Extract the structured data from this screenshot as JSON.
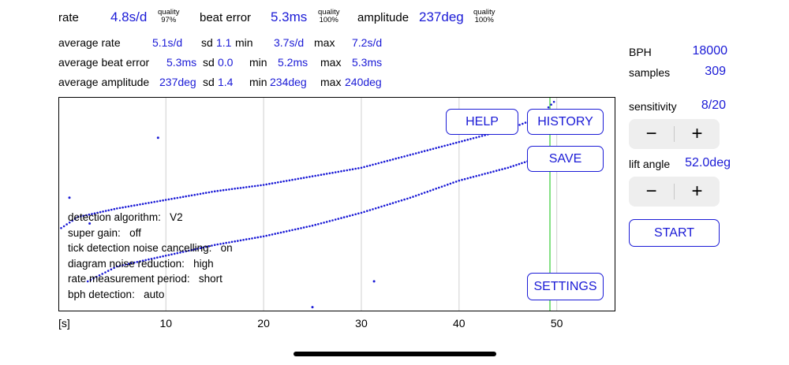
{
  "stats": {
    "rate_label": "rate",
    "rate_value": "4.8s/d",
    "rate_quality_label": "quality",
    "rate_quality_value": "97%",
    "beat_error_label": "beat error",
    "beat_error_value": "5.3ms",
    "beat_quality_label": "quality",
    "beat_quality_value": "100%",
    "amplitude_label": "amplitude",
    "amplitude_value": "237deg",
    "amplitude_quality_label": "quality",
    "amplitude_quality_value": "100%"
  },
  "averages": {
    "rows": [
      {
        "label": "average rate",
        "value": "5.1s/d",
        "sd_label": "sd",
        "sd": "1.1",
        "min_label": "min",
        "min": "3.7s/d",
        "max_label": "max",
        "max": "7.2s/d"
      },
      {
        "label": "average beat error",
        "value": "5.3ms",
        "sd_label": "sd",
        "sd": "0.0",
        "min_label": "min",
        "min": "5.2ms",
        "max_label": "max",
        "max": "5.3ms"
      },
      {
        "label": "average amplitude",
        "value": "237deg",
        "sd_label": "sd",
        "sd": "1.4",
        "min_label": "min",
        "min": "234deg",
        "max_label": "max",
        "max": "240deg"
      }
    ]
  },
  "right_panel": {
    "bph_label": "BPH",
    "bph_value": "18000",
    "samples_label": "samples",
    "samples_value": "309",
    "sensitivity_label": "sensitivity",
    "sensitivity_value": "8/20",
    "lift_angle_label": "lift angle",
    "lift_angle_value": "52.0deg",
    "minus": "−",
    "plus": "+",
    "start_label": "START"
  },
  "buttons": {
    "help": "HELP",
    "history": "HISTORY",
    "save": "SAVE",
    "settings": "SETTINGS"
  },
  "info_lines": [
    {
      "key": "detection algorithm:",
      "value": "V2"
    },
    {
      "key": "super gain:",
      "value": "off"
    },
    {
      "key": "tick detection noise cancelling:",
      "value": "on"
    },
    {
      "key": "diagram noise reduction:",
      "value": "high"
    },
    {
      "key": "rate measurement period:",
      "value": "short"
    },
    {
      "key": "bph detection:",
      "value": "auto"
    }
  ],
  "colors": {
    "accent": "#1a1ad6",
    "green_marker": "#33cc33",
    "grid": "#d0d0d0"
  },
  "chart_data": {
    "type": "scatter",
    "xlabel": "[s]",
    "x_ticks": [
      "10",
      "20",
      "30",
      "40",
      "50"
    ],
    "xlim": [
      -1,
      56
    ],
    "current_time_marker": 49.3,
    "series": [
      {
        "points": [
          [
            -1.0,
            0.62
          ],
          [
            1.0,
            0.56
          ],
          [
            5.0,
            0.52
          ],
          [
            10.0,
            0.48
          ],
          [
            15.0,
            0.44
          ],
          [
            20.0,
            0.41
          ],
          [
            25.0,
            0.37
          ],
          [
            30.0,
            0.33
          ],
          [
            35.0,
            0.27
          ],
          [
            40.0,
            0.21
          ],
          [
            45.0,
            0.15
          ],
          [
            48.0,
            0.1
          ],
          [
            50.0,
            0.01
          ]
        ]
      },
      {
        "points": [
          [
            2.0,
            0.86
          ],
          [
            5.0,
            0.79
          ],
          [
            10.0,
            0.74
          ],
          [
            15.0,
            0.69
          ],
          [
            20.0,
            0.65
          ],
          [
            25.0,
            0.6
          ],
          [
            30.0,
            0.54
          ],
          [
            35.0,
            0.47
          ],
          [
            40.0,
            0.39
          ],
          [
            45.0,
            0.33
          ],
          [
            49.0,
            0.27
          ]
        ]
      }
    ],
    "outliers": [
      [
        9.2,
        0.19
      ],
      [
        -1.0,
        0.47
      ],
      [
        31.3,
        0.86
      ],
      [
        25.0,
        0.98
      ],
      [
        2.2,
        0.59
      ]
    ]
  }
}
